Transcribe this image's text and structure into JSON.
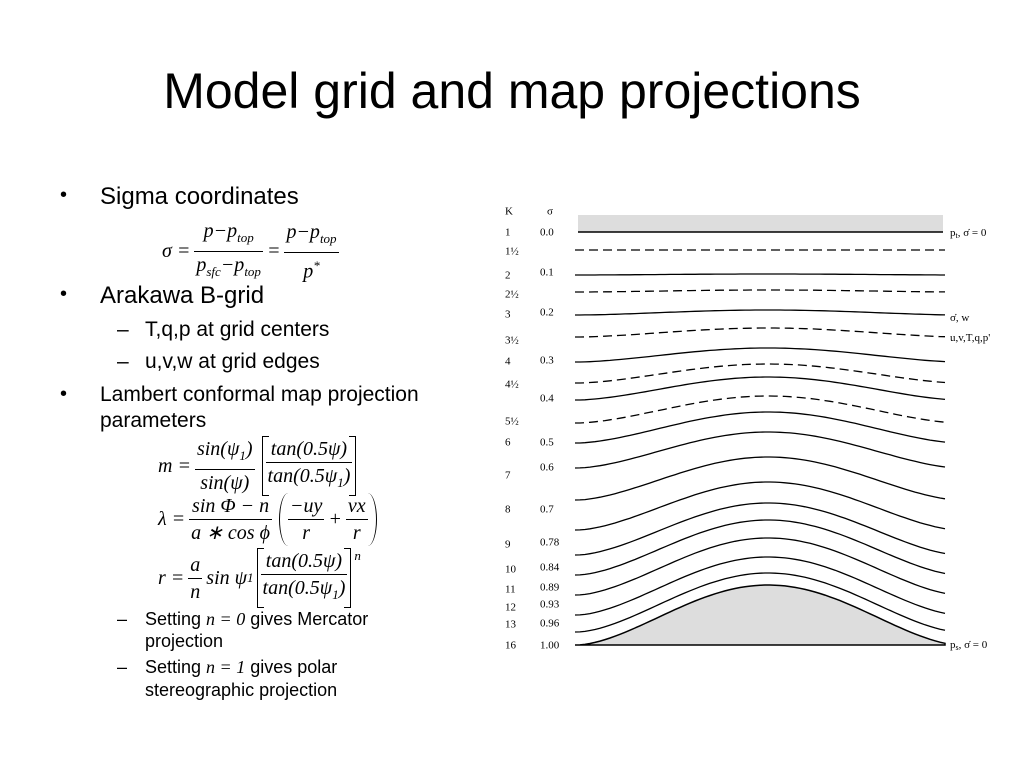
{
  "title": "Model grid and map projections",
  "bullets": {
    "sigma": "Sigma coordinates",
    "arakawa": "Arakawa B-grid",
    "arakawa_sub": [
      "T,q,p at grid centers",
      "u,v,w at grid edges"
    ],
    "lambert": [
      "Lambert conformal map projection",
      "parameters"
    ],
    "settings": [
      {
        "pre": "Setting ",
        "math": "n = 0",
        "post": [
          " gives Mercator",
          "projection"
        ]
      },
      {
        "pre": "Setting ",
        "math": "n = 1",
        "post": [
          " gives polar",
          "stereographic projection"
        ]
      }
    ]
  },
  "sigma_eq": {
    "lhs": "σ =",
    "f1": {
      "num": [
        "p−p",
        "top"
      ],
      "den": [
        "p",
        "sfc",
        "−p",
        "top"
      ]
    },
    "eq": "=",
    "f2": {
      "num": [
        "p−p",
        "top"
      ],
      "den": [
        "p",
        "*"
      ]
    }
  },
  "m_eq": {
    "lhs": "m =",
    "f1": {
      "num": [
        "sin(ψ",
        "1",
        ")"
      ],
      "den": [
        "sin(ψ)"
      ]
    },
    "f2": {
      "num": [
        "tan(0.5ψ)"
      ],
      "den": [
        "tan(0.5ψ",
        "1",
        ")"
      ]
    }
  },
  "lambda_eq": {
    "lhs": "λ =",
    "f1": {
      "num": [
        "sin Φ − n"
      ],
      "den": [
        "a ∗ cos ϕ"
      ]
    },
    "f2": {
      "num": [
        "−uy"
      ],
      "den": [
        "r"
      ]
    },
    "plus": "+",
    "f3": {
      "num": [
        "vx"
      ],
      "den": [
        "r"
      ]
    }
  },
  "r_eq": {
    "lhs": "r =",
    "f1": {
      "num": [
        "a"
      ],
      "den": [
        "n"
      ]
    },
    "mid": [
      "sin ψ",
      "1"
    ],
    "f2": {
      "num": [
        "tan(0.5ψ)"
      ],
      "den": [
        "tan(0.5ψ",
        "1",
        ")"
      ]
    },
    "power": "n"
  },
  "figure": {
    "k_header": "K",
    "sigma_header": "σ",
    "k_labels": [
      "1",
      "1½",
      "2",
      "2½",
      "3",
      "3½",
      "4",
      "4½",
      "5½",
      "6",
      "7",
      "8",
      "9",
      "10",
      "11",
      "12",
      "13",
      "16"
    ],
    "sigma_labels": [
      "0.0",
      "0.1",
      "0.2",
      "0.3",
      "0.4",
      "0.5",
      "0.6",
      "0.7",
      "0.78",
      "0.84",
      "0.89",
      "0.93",
      "0.96",
      "1.00"
    ],
    "right_labels": [
      {
        "p": "p",
        "sub": "t",
        "rest": ", σ̇ = 0"
      },
      {
        "p": "σ̇, w",
        "sub": "",
        "rest": ""
      },
      {
        "p": "u,v,T,q,p'",
        "sub": "",
        "rest": ""
      },
      {
        "p": "p",
        "sub": "s",
        "rest": ", σ̇ = 0"
      }
    ]
  }
}
